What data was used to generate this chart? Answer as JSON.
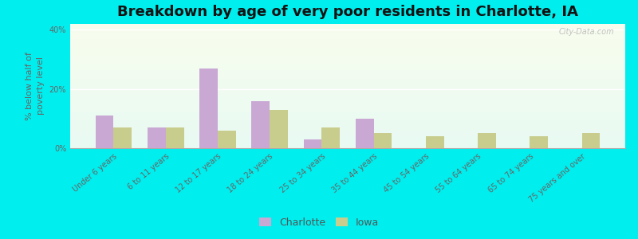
{
  "title": "Breakdown by age of very poor residents in Charlotte, IA",
  "ylabel": "% below half of\npoverty level",
  "categories": [
    "Under 6 years",
    "6 to 11 years",
    "12 to 17 years",
    "18 to 24 years",
    "25 to 34 years",
    "35 to 44 years",
    "45 to 54 years",
    "55 to 64 years",
    "65 to 74 years",
    "75 years and over"
  ],
  "charlotte_values": [
    11.0,
    7.0,
    27.0,
    16.0,
    3.0,
    10.0,
    0.0,
    0.0,
    0.0,
    0.0
  ],
  "iowa_values": [
    7.0,
    7.0,
    6.0,
    13.0,
    7.0,
    5.0,
    4.0,
    5.0,
    4.0,
    5.0
  ],
  "charlotte_color": "#c9a8d4",
  "iowa_color": "#c8cc8c",
  "outer_background": "#00eeee",
  "ylim": [
    0,
    42
  ],
  "yticks": [
    0,
    20,
    40
  ],
  "ytick_labels": [
    "0%",
    "20%",
    "40%"
  ],
  "bar_width": 0.35,
  "title_fontsize": 13,
  "axis_label_fontsize": 8,
  "tick_fontsize": 7,
  "legend_labels": [
    "Charlotte",
    "Iowa"
  ],
  "watermark": "City-Data.com"
}
